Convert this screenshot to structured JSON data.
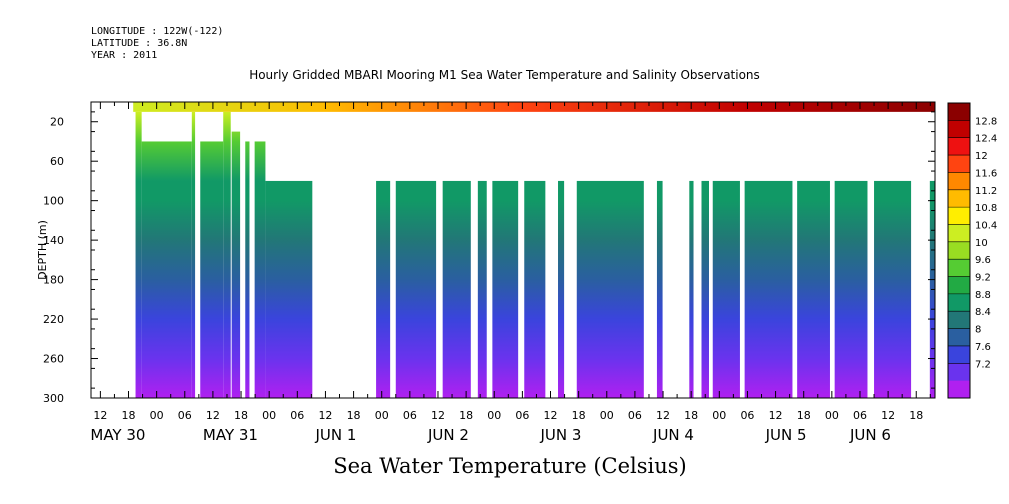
{
  "header": {
    "longitude": "LONGITUDE : 122W(-122)",
    "latitude": "LATITUDE : 36.8N",
    "year": "YEAR : 2011"
  },
  "chart_data": {
    "type": "heatmap",
    "title": "Hourly Gridded MBARI Mooring M1 Sea Water Temperature and Salinity Observations",
    "variable_label": "Sea Water Temperature (Celsius)",
    "ylabel": "DEPTH (m)",
    "ylim": [
      300,
      0
    ],
    "y_ticks": [
      20,
      60,
      100,
      140,
      180,
      220,
      260,
      300
    ],
    "x_start_hour": 10,
    "x_end_hour": 190,
    "x_hour_ticks": [
      {
        "h": 12,
        "label": "12"
      },
      {
        "h": 18,
        "label": "18"
      },
      {
        "h": 24,
        "label": "00"
      },
      {
        "h": 30,
        "label": "06"
      },
      {
        "h": 36,
        "label": "12"
      },
      {
        "h": 42,
        "label": "18"
      },
      {
        "h": 48,
        "label": "00"
      },
      {
        "h": 54,
        "label": "06"
      },
      {
        "h": 60,
        "label": "12"
      },
      {
        "h": 66,
        "label": "18"
      },
      {
        "h": 72,
        "label": "00"
      },
      {
        "h": 78,
        "label": "06"
      },
      {
        "h": 84,
        "label": "12"
      },
      {
        "h": 90,
        "label": "18"
      },
      {
        "h": 96,
        "label": "00"
      },
      {
        "h": 102,
        "label": "06"
      },
      {
        "h": 108,
        "label": "12"
      },
      {
        "h": 114,
        "label": "18"
      },
      {
        "h": 120,
        "label": "00"
      },
      {
        "h": 126,
        "label": "06"
      },
      {
        "h": 132,
        "label": "12"
      },
      {
        "h": 138,
        "label": "18"
      },
      {
        "h": 144,
        "label": "00"
      },
      {
        "h": 150,
        "label": "06"
      },
      {
        "h": 156,
        "label": "12"
      },
      {
        "h": 162,
        "label": "18"
      },
      {
        "h": 168,
        "label": "00"
      },
      {
        "h": 174,
        "label": "06"
      },
      {
        "h": 180,
        "label": "12"
      },
      {
        "h": 186,
        "label": "18"
      }
    ],
    "day_labels": [
      {
        "h": 12,
        "label": "MAY 30"
      },
      {
        "h": 36,
        "label": "MAY 31"
      },
      {
        "h": 60,
        "label": "JUN  1"
      },
      {
        "h": 84,
        "label": "JUN  2"
      },
      {
        "h": 108,
        "label": "JUN  3"
      },
      {
        "h": 132,
        "label": "JUN  4"
      },
      {
        "h": 156,
        "label": "JUN  5"
      },
      {
        "h": 174,
        "label": "JUN  6"
      }
    ],
    "colorbar": {
      "levels": [
        "12.8",
        "12.4",
        "12",
        "11.6",
        "11.2",
        "10.8",
        "10.4",
        "10",
        "9.6",
        "9.2",
        "8.8",
        "8.4",
        "8",
        "7.6",
        "7.2"
      ],
      "colors": [
        "#8b0000",
        "#c00000",
        "#ee1111",
        "#ff4411",
        "#ff8800",
        "#ffbb00",
        "#ffee00",
        "#ccee22",
        "#99dd22",
        "#55cc33",
        "#22aa44",
        "#119966",
        "#227777",
        "#2a5fa0",
        "#3a44dd",
        "#6a33ee",
        "#b020f0"
      ]
    },
    "surface_band": {
      "depth_top": 0,
      "depth_bottom": 10,
      "note_values": [
        {
          "h": 18,
          "t": 10.4
        },
        {
          "h": 60,
          "t": 11.0
        },
        {
          "h": 102,
          "t": 11.8
        },
        {
          "h": 150,
          "t": 12.6
        },
        {
          "h": 190,
          "t": 12.8
        }
      ]
    },
    "data_segments": [
      {
        "h0": 19.5,
        "h1": 20.8,
        "d0": 10,
        "d1": 300
      },
      {
        "h0": 20.8,
        "h1": 31.5,
        "d0": 40,
        "d1": 300
      },
      {
        "h0": 31.5,
        "h1": 32.2,
        "d0": 10,
        "d1": 300
      },
      {
        "h0": 33.3,
        "h1": 38.2,
        "d0": 40,
        "d1": 300
      },
      {
        "h0": 38.2,
        "h1": 39.8,
        "d0": 10,
        "d1": 300
      },
      {
        "h0": 40.0,
        "h1": 41.8,
        "d0": 30,
        "d1": 300
      },
      {
        "h0": 42.9,
        "h1": 43.8,
        "d0": 40,
        "d1": 300
      },
      {
        "h0": 44.9,
        "h1": 47.2,
        "d0": 40,
        "d1": 300
      },
      {
        "h0": 47.2,
        "h1": 57.2,
        "d0": 80,
        "d1": 300
      },
      {
        "h0": 70.8,
        "h1": 73.8,
        "d0": 80,
        "d1": 300
      },
      {
        "h0": 75.0,
        "h1": 83.6,
        "d0": 80,
        "d1": 300
      },
      {
        "h0": 85.0,
        "h1": 91.0,
        "d0": 80,
        "d1": 300
      },
      {
        "h0": 92.5,
        "h1": 94.4,
        "d0": 80,
        "d1": 300
      },
      {
        "h0": 95.6,
        "h1": 101.1,
        "d0": 80,
        "d1": 300
      },
      {
        "h0": 102.4,
        "h1": 106.9,
        "d0": 80,
        "d1": 300
      },
      {
        "h0": 109.6,
        "h1": 110.9,
        "d0": 80,
        "d1": 300
      },
      {
        "h0": 113.6,
        "h1": 127.9,
        "d0": 80,
        "d1": 300
      },
      {
        "h0": 130.7,
        "h1": 131.9,
        "d0": 80,
        "d1": 300
      },
      {
        "h0": 137.6,
        "h1": 138.5,
        "d0": 80,
        "d1": 300
      },
      {
        "h0": 140.2,
        "h1": 141.8,
        "d0": 80,
        "d1": 300
      },
      {
        "h0": 142.6,
        "h1": 148.4,
        "d0": 80,
        "d1": 300
      },
      {
        "h0": 149.4,
        "h1": 159.6,
        "d0": 80,
        "d1": 300
      },
      {
        "h0": 160.6,
        "h1": 167.6,
        "d0": 80,
        "d1": 300
      },
      {
        "h0": 168.6,
        "h1": 175.6,
        "d0": 80,
        "d1": 300
      },
      {
        "h0": 177.0,
        "h1": 184.9,
        "d0": 80,
        "d1": 300
      },
      {
        "h0": 188.9,
        "h1": 190.0,
        "d0": 80,
        "d1": 300
      }
    ],
    "temperature_profile": [
      {
        "depth": 10,
        "t": 10.2
      },
      {
        "depth": 40,
        "t": 9.5
      },
      {
        "depth": 80,
        "t": 9.0
      },
      {
        "depth": 100,
        "t": 8.8
      },
      {
        "depth": 140,
        "t": 8.45
      },
      {
        "depth": 180,
        "t": 8.1
      },
      {
        "depth": 220,
        "t": 7.75
      },
      {
        "depth": 260,
        "t": 7.45
      },
      {
        "depth": 300,
        "t": 7.2
      }
    ]
  }
}
